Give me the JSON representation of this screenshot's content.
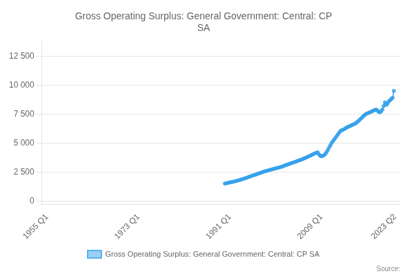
{
  "chart_data": {
    "type": "line",
    "title": "Gross Operating Surplus: General Government: Central: CP\nSA",
    "annotations": [
      "Source:"
    ],
    "legend": "bottom",
    "grid": true,
    "xlim": [
      1954.0,
      2024.5
    ],
    "xticks": [
      {
        "value": 1955.0,
        "label": "1955 Q1"
      },
      {
        "value": 1973.0,
        "label": "1973 Q1"
      },
      {
        "value": 1991.0,
        "label": "1991 Q1"
      },
      {
        "value": 2009.0,
        "label": "2009 Q1"
      },
      {
        "value": 2023.5,
        "label": "2023 Q2"
      }
    ],
    "ylim": [
      -300,
      13800
    ],
    "yticks": [
      0,
      {
        "value": 2500,
        "label": "2 500"
      },
      {
        "value": 5000,
        "label": "5 000"
      },
      {
        "value": 7500,
        "label": "7 500"
      },
      {
        "value": 10000,
        "label": "10 000"
      },
      {
        "value": 12500,
        "label": "12 500"
      }
    ],
    "x": [
      1990.0,
      1990.25,
      1990.5,
      1990.75,
      1991.0,
      1991.25,
      1991.5,
      1991.75,
      1992.0,
      1992.25,
      1992.5,
      1992.75,
      1993.0,
      1993.25,
      1993.5,
      1993.75,
      1994.0,
      1994.25,
      1994.5,
      1994.75,
      1995.0,
      1995.25,
      1995.5,
      1995.75,
      1996.0,
      1996.25,
      1996.5,
      1996.75,
      1997.0,
      1997.25,
      1997.5,
      1997.75,
      1998.0,
      1998.25,
      1998.5,
      1998.75,
      1999.0,
      1999.25,
      1999.5,
      1999.75,
      2000.0,
      2000.25,
      2000.5,
      2000.75,
      2001.0,
      2001.25,
      2001.5,
      2001.75,
      2002.0,
      2002.25,
      2002.5,
      2002.75,
      2003.0,
      2003.25,
      2003.5,
      2003.75,
      2004.0,
      2004.25,
      2004.5,
      2004.75,
      2005.0,
      2005.25,
      2005.5,
      2005.75,
      2006.0,
      2006.25,
      2006.5,
      2006.75,
      2007.0,
      2007.25,
      2007.5,
      2007.75,
      2008.0,
      2008.25,
      2008.5,
      2008.75,
      2009.0,
      2009.25,
      2009.5,
      2009.75,
      2010.0,
      2010.25,
      2010.5,
      2010.75,
      2011.0,
      2011.25,
      2011.5,
      2011.75,
      2012.0,
      2012.25,
      2012.5,
      2012.75,
      2013.0,
      2013.25,
      2013.5,
      2013.75,
      2014.0,
      2014.25,
      2014.5,
      2014.75,
      2015.0,
      2015.25,
      2015.5,
      2015.75,
      2016.0,
      2016.25,
      2016.5,
      2016.75,
      2017.0,
      2017.25,
      2017.5,
      2017.75,
      2018.0,
      2018.25,
      2018.5,
      2018.75,
      2019.0,
      2019.25,
      2019.5,
      2019.75,
      2020.0,
      2020.25,
      2020.5,
      2020.75,
      2021.0,
      2021.25,
      2021.5,
      2021.75,
      2022.0,
      2022.25,
      2022.5,
      2022.75,
      2023.0,
      2023.25
    ],
    "series": [
      {
        "name": "Gross Operating Surplus: General Government: Central: CP SA",
        "marker": "circle",
        "values": [
          1500,
          1520,
          1550,
          1580,
          1600,
          1620,
          1640,
          1670,
          1700,
          1730,
          1760,
          1790,
          1820,
          1860,
          1890,
          1920,
          1960,
          2000,
          2040,
          2080,
          2120,
          2160,
          2200,
          2230,
          2270,
          2310,
          2350,
          2380,
          2420,
          2460,
          2500,
          2540,
          2570,
          2600,
          2630,
          2660,
          2690,
          2720,
          2750,
          2780,
          2810,
          2840,
          2870,
          2900,
          2930,
          2970,
          3010,
          3050,
          3090,
          3130,
          3170,
          3210,
          3250,
          3290,
          3320,
          3360,
          3400,
          3440,
          3480,
          3520,
          3560,
          3610,
          3660,
          3700,
          3750,
          3800,
          3850,
          3900,
          3960,
          4010,
          4060,
          4110,
          4160,
          4200,
          4040,
          3900,
          3850,
          3900,
          3950,
          4050,
          4200,
          4400,
          4600,
          4800,
          5000,
          5150,
          5300,
          5450,
          5600,
          5750,
          5900,
          6050,
          6100,
          6150,
          6200,
          6280,
          6350,
          6400,
          6450,
          6500,
          6550,
          6600,
          6650,
          6700,
          6800,
          6900,
          7000,
          7100,
          7200,
          7320,
          7420,
          7500,
          7550,
          7600,
          7650,
          7700,
          7750,
          7800,
          7850,
          7900,
          7820,
          7700,
          7650,
          7750,
          7900,
          8200,
          8500,
          8300,
          8400,
          8600,
          8700,
          8800,
          8900,
          9500
        ]
      }
    ]
  }
}
